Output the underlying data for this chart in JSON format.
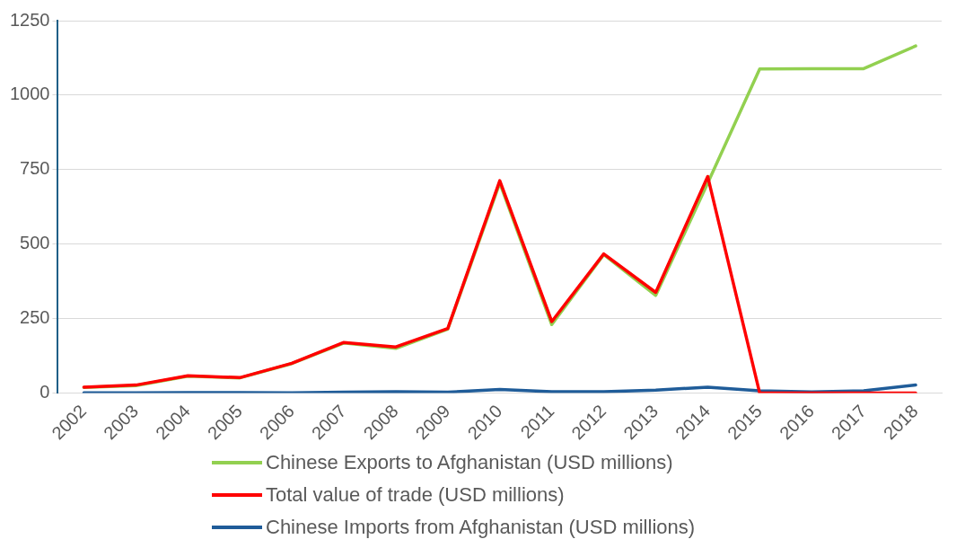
{
  "chart_data": {
    "type": "line",
    "categories": [
      "2002",
      "2003",
      "2004",
      "2005",
      "2006",
      "2007",
      "2008",
      "2009",
      "2010",
      "2011",
      "2012",
      "2013",
      "2014",
      "2015",
      "2016",
      "2017",
      "2018"
    ],
    "series": [
      {
        "name": "Chinese Exports to Afghanistan (USD millions)",
        "color": "#92d050",
        "values": [
          19,
          25,
          57,
          51,
          99,
          168,
          150,
          215,
          705,
          230,
          465,
          328,
          705,
          1088,
          1089,
          1089,
          1165
        ]
      },
      {
        "name": "Total value of trade (USD millions)",
        "color": "#ff0000",
        "values": [
          20,
          27,
          58,
          52,
          100,
          170,
          155,
          217,
          713,
          240,
          467,
          338,
          727,
          0,
          0,
          0,
          0
        ]
      },
      {
        "name": "Chinese Imports from Afghanistan (USD millions)",
        "color": "#1f5c99",
        "values": [
          1,
          1,
          2,
          2,
          1,
          3,
          5,
          3,
          12,
          5,
          5,
          10,
          20,
          8,
          4,
          8,
          27
        ]
      }
    ],
    "ylim": [
      0,
      1250
    ],
    "yticks": [
      0,
      250,
      500,
      750,
      1000,
      1250
    ],
    "grid": "y",
    "legend": "bottom",
    "marker": "none",
    "line_style": "solid"
  }
}
